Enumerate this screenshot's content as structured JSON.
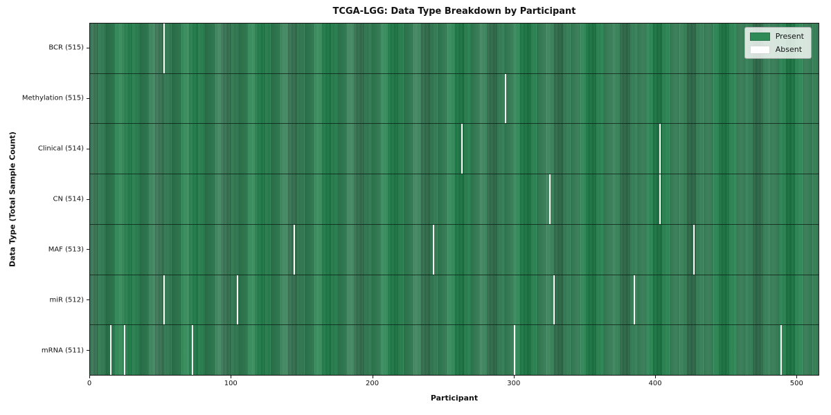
{
  "chart_data": {
    "type": "heatmap",
    "title": "TCGA-LGG: Data Type Breakdown by Participant",
    "xlabel": "Participant",
    "ylabel": "Data Type (Total Sample Count)",
    "x_range": [
      0,
      516
    ],
    "x_ticks": [
      0,
      100,
      200,
      300,
      400,
      500
    ],
    "total_participants": 516,
    "grid": false,
    "legend_position": "upper right",
    "legend": [
      {
        "label": "Present",
        "color": "#2e8b57"
      },
      {
        "label": "Absent",
        "color": "#ffffff"
      }
    ],
    "rows": [
      {
        "id": "bcr",
        "label": "BCR (515)",
        "data_type": "BCR",
        "present_count": 515,
        "absent_participants": [
          52
        ]
      },
      {
        "id": "methylation",
        "label": "Methylation (515)",
        "data_type": "Methylation",
        "present_count": 515,
        "absent_participants": [
          294
        ]
      },
      {
        "id": "clinical",
        "label": "Clinical (514)",
        "data_type": "Clinical",
        "present_count": 514,
        "absent_participants": [
          263,
          403
        ]
      },
      {
        "id": "cn",
        "label": "CN (514)",
        "data_type": "CN",
        "present_count": 514,
        "absent_participants": [
          325,
          403
        ]
      },
      {
        "id": "maf",
        "label": "MAF (513)",
        "data_type": "MAF",
        "present_count": 513,
        "absent_participants": [
          144,
          243,
          427
        ]
      },
      {
        "id": "mir",
        "label": "miR (512)",
        "data_type": "miR",
        "present_count": 512,
        "absent_participants": [
          52,
          104,
          328,
          385
        ]
      },
      {
        "id": "mrna",
        "label": "mRNA (511)",
        "data_type": "mRNA",
        "present_count": 511,
        "absent_participants": [
          14,
          24,
          72,
          300,
          489
        ]
      }
    ]
  }
}
